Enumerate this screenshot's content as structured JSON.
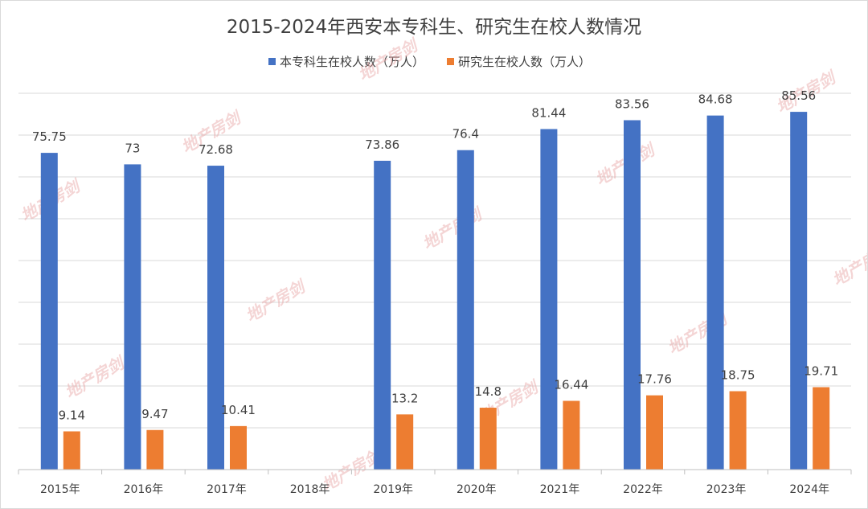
{
  "chart_data": {
    "type": "bar",
    "title": "2015-2024年西安本专科生、研究生在校人数情况",
    "xlabel": "",
    "ylabel": "",
    "ylim": [
      0,
      90
    ],
    "grid": true,
    "legend_position": "top",
    "categories": [
      "2015年",
      "2016年",
      "2017年",
      "2018年",
      "2019年",
      "2020年",
      "2021年",
      "2022年",
      "2023年",
      "2024年"
    ],
    "series": [
      {
        "name": "本专科生在校人数（万人）",
        "color": "#4472c4",
        "values": [
          75.75,
          73,
          72.68,
          null,
          73.86,
          76.4,
          81.44,
          83.56,
          84.68,
          85.56
        ]
      },
      {
        "name": "研究生在校人数（万人）",
        "color": "#ed7d31",
        "values": [
          9.14,
          9.47,
          10.41,
          null,
          13.2,
          14.8,
          16.44,
          17.76,
          18.75,
          19.71
        ]
      }
    ],
    "value_labels": [
      [
        "75.75",
        "73",
        "72.68",
        "",
        "73.86",
        "76.4",
        "81.44",
        "83.56",
        "84.68",
        "85.56"
      ],
      [
        "9.14",
        "9.47",
        "10.41",
        "",
        "13.2",
        "14.8",
        "16.44",
        "17.76",
        "18.75",
        "19.71"
      ]
    ]
  },
  "watermark": {
    "text": "地产房剑",
    "color": "#e8a3a3"
  }
}
